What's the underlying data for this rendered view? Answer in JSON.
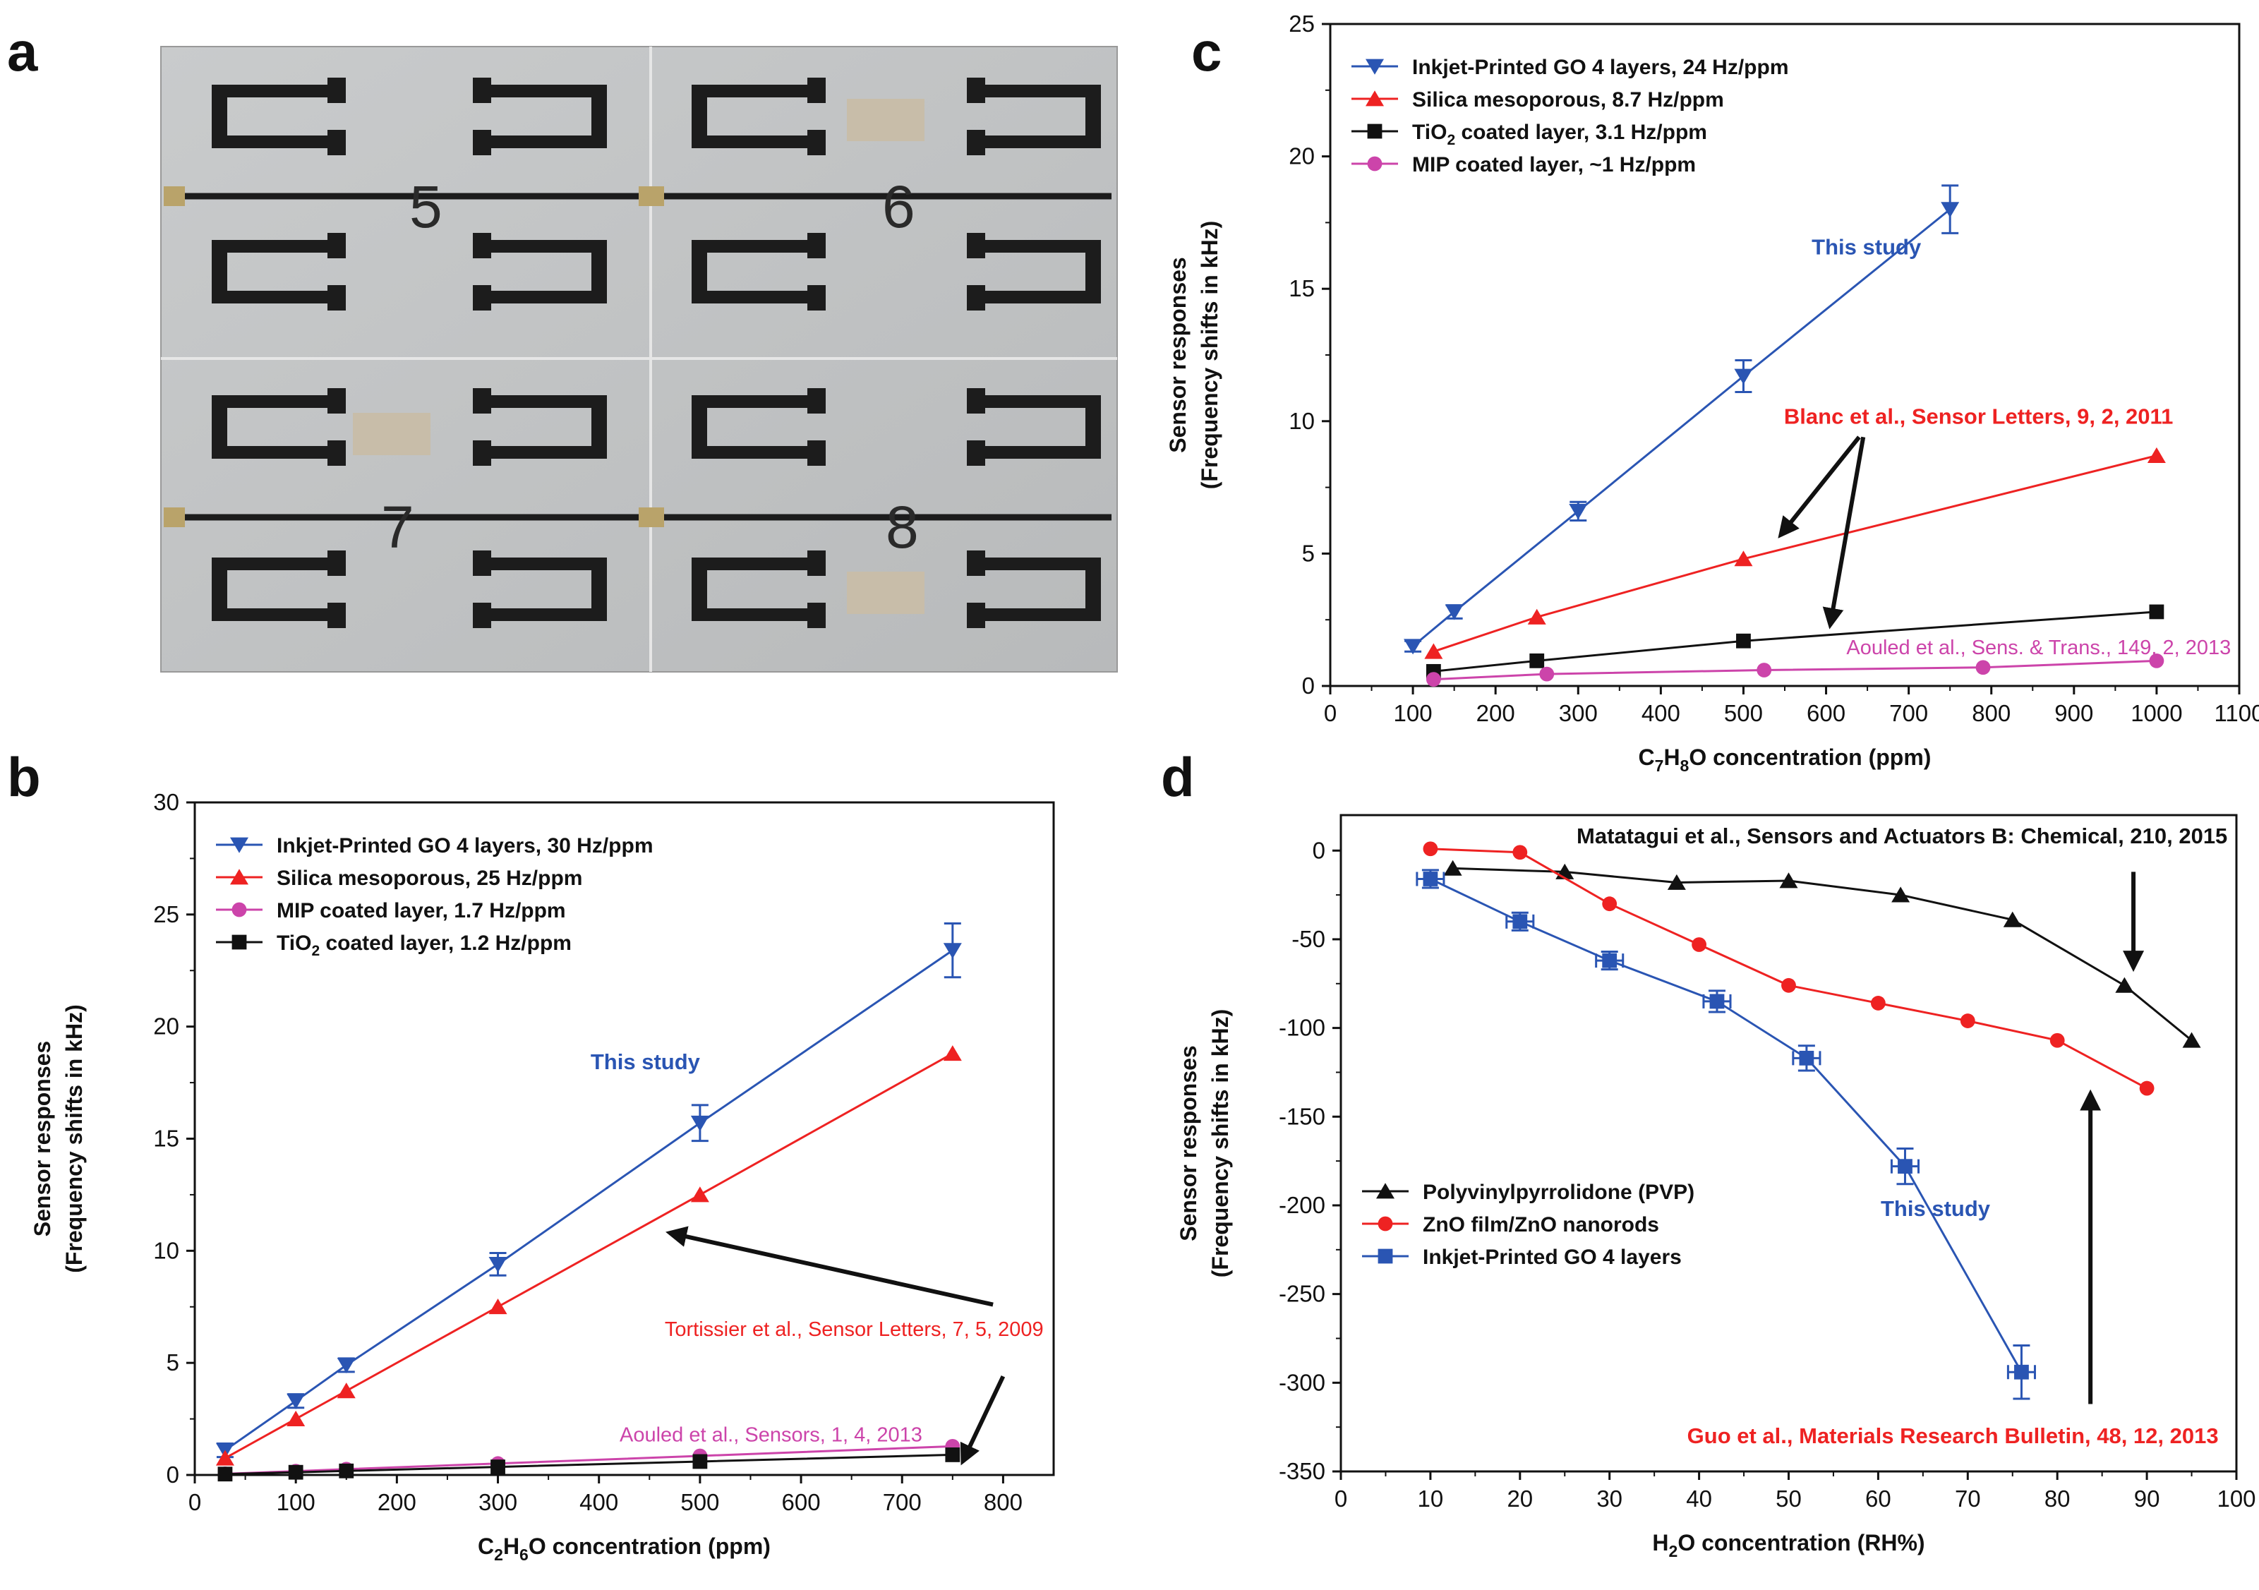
{
  "panel_labels": {
    "a": "a",
    "b": "b",
    "c": "c",
    "d": "d"
  },
  "photo": {
    "digits": [
      "5",
      "6",
      "7",
      "8"
    ]
  },
  "chart_data": [
    {
      "id": "b",
      "type": "line",
      "xlabel": {
        "pre": "C",
        "s1": "2",
        "mid": "H",
        "s2": "6",
        "post": "O concentration (ppm)"
      },
      "ylabel": [
        "Sensor responses",
        "(Frequency shifts in kHz)"
      ],
      "xlim": [
        0,
        850
      ],
      "ylim": [
        0,
        30
      ],
      "xticks": [
        0,
        100,
        200,
        300,
        400,
        500,
        600,
        700,
        800
      ],
      "yticks": [
        0,
        5,
        10,
        15,
        20,
        25,
        30
      ],
      "legend": {
        "placement": "top-left",
        "entries": [
          {
            "series": 0,
            "pre": "Inkjet-Printed GO 4 layers, 30 Hz/ppm"
          },
          {
            "series": 1,
            "pre": "Silica mesoporous, 25 Hz/ppm"
          },
          {
            "series": 2,
            "pre": "MIP coated layer, 1.7 Hz/ppm"
          },
          {
            "series": 3,
            "pre": "TiO",
            "sub": "2",
            "post": " coated layer, 1.2 Hz/ppm"
          }
        ]
      },
      "series": [
        {
          "name": "Inkjet-Printed GO 4 layers, 30 Hz/ppm",
          "color": "#2a55b3",
          "marker": "triangle-down",
          "x": [
            30,
            100,
            150,
            300,
            500,
            750
          ],
          "y": [
            1.1,
            3.3,
            4.9,
            9.4,
            15.7,
            23.4
          ],
          "err": [
            0.3,
            0.3,
            0.3,
            0.5,
            0.8,
            1.2
          ]
        },
        {
          "name": "Silica mesoporous, 25 Hz/ppm",
          "color": "#ee2222",
          "marker": "triangle-up",
          "x": [
            30,
            100,
            150,
            300,
            500,
            750
          ],
          "y": [
            0.75,
            2.5,
            3.75,
            7.5,
            12.5,
            18.8
          ]
        },
        {
          "name": "MIP coated layer, 1.7 Hz/ppm",
          "color": "#cc44aa",
          "marker": "circle",
          "x": [
            30,
            100,
            150,
            300,
            500,
            750
          ],
          "y": [
            0.05,
            0.17,
            0.26,
            0.51,
            0.85,
            1.28
          ]
        },
        {
          "name": "TiO2 coated layer, 1.2 Hz/ppm",
          "color": "#111111",
          "marker": "square",
          "x": [
            30,
            100,
            150,
            300,
            500,
            750
          ],
          "y": [
            0.04,
            0.12,
            0.18,
            0.36,
            0.6,
            0.9
          ]
        }
      ],
      "annotations": [
        {
          "text": "This study",
          "color": "#2a55b3",
          "x": 500,
          "y": 18.1,
          "anchor": "end",
          "style": "bold"
        },
        {
          "text": "Tortissier et al., Sensor Letters, 7, 5, 2009",
          "color": "#ee2222",
          "x": 840,
          "y": 6.2,
          "anchor": "end",
          "style": "normal"
        },
        {
          "text": "Aouled et al., Sensors, 1, 4, 2013",
          "color": "#cc44aa",
          "x": 720,
          "y": 1.5,
          "anchor": "end",
          "style": "normal"
        }
      ],
      "arrows": [
        {
          "x1": 790,
          "y1": 7.6,
          "x2": 470,
          "y2": 10.8
        },
        {
          "x1": 800,
          "y1": 4.4,
          "x2": 760,
          "y2": 0.6
        }
      ]
    },
    {
      "id": "c",
      "type": "line",
      "xlabel": {
        "pre": "C",
        "s1": "7",
        "mid": "H",
        "s2": "8",
        "post": "O concentration (ppm)"
      },
      "ylabel": [
        "Sensor responses",
        "(Frequency shifts in kHz)"
      ],
      "xlim": [
        0,
        1100
      ],
      "ylim": [
        0,
        25
      ],
      "xticks": [
        0,
        100,
        200,
        300,
        400,
        500,
        600,
        700,
        800,
        900,
        1000,
        1100
      ],
      "yticks": [
        0,
        5,
        10,
        15,
        20,
        25
      ],
      "legend": {
        "placement": "top-left",
        "entries": [
          {
            "series": 0,
            "pre": "Inkjet-Printed GO 4 layers, 24 Hz/ppm"
          },
          {
            "series": 1,
            "pre": "Silica mesoporous, 8.7 Hz/ppm"
          },
          {
            "series": 2,
            "pre": "TiO",
            "sub": "2",
            "post": " coated layer, 3.1 Hz/ppm"
          },
          {
            "series": 3,
            "pre": "MIP coated layer, ~1 Hz/ppm"
          }
        ]
      },
      "series": [
        {
          "name": "Inkjet-Printed GO 4 layers, 24 Hz/ppm",
          "color": "#2a55b3",
          "marker": "triangle-down",
          "x": [
            100,
            150,
            300,
            500,
            750
          ],
          "y": [
            1.5,
            2.8,
            6.6,
            11.7,
            18.0
          ],
          "err": [
            0.2,
            0.25,
            0.35,
            0.6,
            0.9
          ]
        },
        {
          "name": "Silica mesoporous, 8.7 Hz/ppm",
          "color": "#ee2222",
          "marker": "triangle-up",
          "x": [
            125,
            250,
            500,
            1000
          ],
          "y": [
            1.3,
            2.6,
            4.8,
            8.7
          ]
        },
        {
          "name": "TiO2 coated layer, 3.1 Hz/ppm",
          "color": "#111111",
          "marker": "square",
          "x": [
            125,
            250,
            500,
            1000
          ],
          "y": [
            0.55,
            0.95,
            1.7,
            2.8
          ]
        },
        {
          "name": "MIP coated layer, ~1 Hz/ppm",
          "color": "#cc44aa",
          "marker": "circle",
          "x": [
            125,
            262,
            525,
            790,
            1000
          ],
          "y": [
            0.25,
            0.45,
            0.6,
            0.7,
            0.95
          ]
        }
      ],
      "annotations": [
        {
          "text": "This study",
          "color": "#2a55b3",
          "x": 715,
          "y": 16.3,
          "anchor": "end",
          "style": "bold"
        },
        {
          "text": "Blanc et al., Sensor Letters, 9, 2, 2011",
          "color": "#ee2222",
          "x": 1020,
          "y": 9.9,
          "anchor": "end",
          "style": "bold"
        },
        {
          "text": "Aouled et al., Sens. & Trans., 149, 2, 2013",
          "color": "#cc44aa",
          "x": 1090,
          "y": 1.2,
          "anchor": "end",
          "style": "normal"
        }
      ],
      "arrows": [
        {
          "x1": 640,
          "y1": 9.4,
          "x2": 545,
          "y2": 5.7
        },
        {
          "x1": 645,
          "y1": 9.4,
          "x2": 605,
          "y2": 2.3
        }
      ]
    },
    {
      "id": "d",
      "type": "line",
      "xlabel": {
        "pre": "H",
        "s1": "2",
        "mid": "O concentration (RH%)",
        "s2": "",
        "post": ""
      },
      "ylabel": [
        "Sensor responses",
        "(Frequency shifts in kHz)"
      ],
      "xlim": [
        0,
        100
      ],
      "ylim": [
        -350,
        20
      ],
      "xticks": [
        0,
        10,
        20,
        30,
        40,
        50,
        60,
        70,
        80,
        90,
        100
      ],
      "yticks": [
        0,
        -50,
        -100,
        -150,
        -200,
        -250,
        -300,
        -350
      ],
      "legend": {
        "placement": "bottom-left",
        "entries": [
          {
            "series": 0,
            "pre": "Polyvinylpyrrolidone (PVP)"
          },
          {
            "series": 1,
            "pre": "ZnO film/ZnO nanorods"
          },
          {
            "series": 2,
            "pre": "Inkjet-Printed GO 4 layers"
          }
        ]
      },
      "series": [
        {
          "name": "Polyvinylpyrrolidone (PVP)",
          "color": "#111111",
          "marker": "triangle-up",
          "x": [
            12.5,
            25,
            37.5,
            50,
            62.5,
            75,
            87.5,
            95
          ],
          "y": [
            -10,
            -12,
            -18,
            -17,
            -25,
            -39,
            -76,
            -107
          ]
        },
        {
          "name": "ZnO film/ZnO nanorods",
          "color": "#ee2222",
          "marker": "circle",
          "x": [
            10,
            20,
            30,
            40,
            50,
            60,
            70,
            80,
            90
          ],
          "y": [
            1,
            -1,
            -30,
            -53,
            -76,
            -86,
            -96,
            -107,
            -134
          ]
        },
        {
          "name": "Inkjet-Printed GO 4 layers",
          "color": "#2a55b3",
          "marker": "square",
          "x": [
            10,
            20,
            30,
            42,
            52,
            63,
            76
          ],
          "y": [
            -16,
            -40,
            -62,
            -85,
            -117,
            -178,
            -294
          ],
          "err": [
            5,
            5,
            5,
            6,
            7,
            10,
            15
          ],
          "xerr": [
            1.5,
            1.5,
            1.5,
            1.5,
            1.5,
            1.5,
            1.5
          ]
        }
      ],
      "annotations": [
        {
          "text": "Matatagui et al., Sensors and Actuators B: Chemical, 210, 2015",
          "color": "#111111",
          "x": 99,
          "y": 4,
          "anchor": "end",
          "style": "bold"
        },
        {
          "text": "This study",
          "color": "#2a55b3",
          "x": 72.5,
          "y": -206,
          "anchor": "end",
          "style": "bold"
        },
        {
          "text": "Guo et al., Materials Research Bulletin, 48, 12, 2013",
          "color": "#ee2222",
          "x": 98,
          "y": -334,
          "anchor": "end",
          "style": "bold"
        }
      ],
      "arrows": [
        {
          "x1": 88.5,
          "y1": -12,
          "x2": 88.5,
          "y2": -66
        },
        {
          "x1": 83.7,
          "y1": -312,
          "x2": 83.7,
          "y2": -137
        }
      ]
    }
  ]
}
